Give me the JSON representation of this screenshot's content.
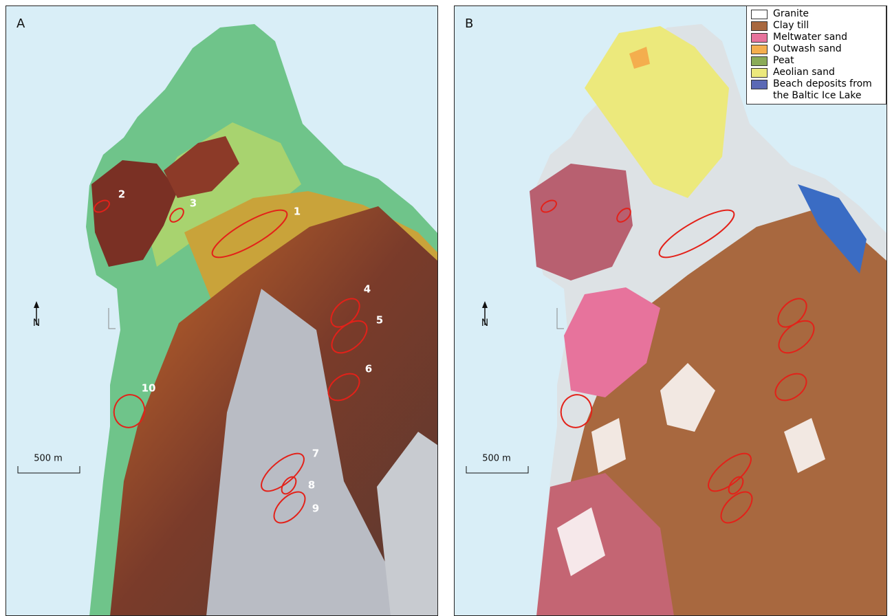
{
  "panels": [
    {
      "label": "A",
      "north": "N",
      "scale": "500 m",
      "sites": [
        "1",
        "2",
        "3",
        "4",
        "5",
        "6",
        "7",
        "8",
        "9",
        "10"
      ]
    },
    {
      "label": "B",
      "north": "N",
      "scale": "500 m"
    }
  ],
  "legend": [
    {
      "label": "Granite",
      "color": "#ffffff"
    },
    {
      "label": "Clay till",
      "color": "#a8683f"
    },
    {
      "label": "Meltwater sand",
      "color": "#e7739c"
    },
    {
      "label": "Outwash sand",
      "color": "#f4ae4e"
    },
    {
      "label": "Peat",
      "color": "#8bab58"
    },
    {
      "label": "Aeolian sand",
      "color": "#ece97c"
    },
    {
      "label": "Beach deposits from the Baltic Ice Lake",
      "color": "#5b69b5"
    }
  ]
}
